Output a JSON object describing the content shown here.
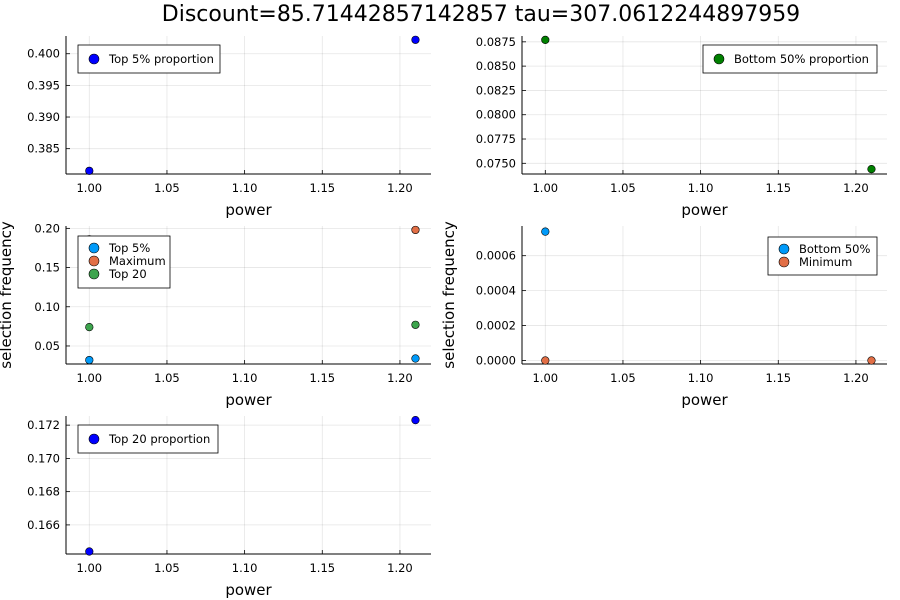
{
  "title": "Discount=85.71442857142857 tau=307.0612244897959",
  "chart_data": [
    {
      "type": "scatter",
      "xlabel": "power",
      "ylabel": "",
      "xlim": [
        0.985,
        1.22
      ],
      "ylim": [
        0.381,
        0.4028
      ],
      "xticks": [
        "1.00",
        "1.05",
        "1.10",
        "1.15",
        "1.20"
      ],
      "yticks": [
        "0.385",
        "0.390",
        "0.395",
        "0.400"
      ],
      "grid": true,
      "legend_position": "top-left",
      "series": [
        {
          "name": "Top 5% proportion",
          "color": "#0000ff",
          "x": [
            1.0,
            1.21
          ],
          "y": [
            0.3815,
            0.4022
          ]
        }
      ]
    },
    {
      "type": "scatter",
      "xlabel": "power",
      "ylabel": "",
      "xlim": [
        0.985,
        1.22
      ],
      "ylim": [
        0.0739,
        0.0881
      ],
      "xticks": [
        "1.00",
        "1.05",
        "1.10",
        "1.15",
        "1.20"
      ],
      "yticks": [
        "0.0750",
        "0.0775",
        "0.0800",
        "0.0825",
        "0.0850",
        "0.0875"
      ],
      "grid": true,
      "legend_position": "top-right",
      "series": [
        {
          "name": "Bottom 50% proportion",
          "color": "#008000",
          "x": [
            1.0,
            1.21
          ],
          "y": [
            0.0877,
            0.0744
          ]
        }
      ]
    },
    {
      "type": "scatter",
      "xlabel": "power",
      "ylabel": "selection frequency",
      "xlim": [
        0.985,
        1.22
      ],
      "ylim": [
        0.027,
        0.203
      ],
      "xticks": [
        "1.00",
        "1.05",
        "1.10",
        "1.15",
        "1.20"
      ],
      "yticks": [
        "0.05",
        "0.10",
        "0.15",
        "0.20"
      ],
      "grid": true,
      "legend_position": "top-left",
      "series": [
        {
          "name": "Top 5%",
          "color": "#009af9",
          "x": [
            1.0,
            1.21
          ],
          "y": [
            0.032,
            0.034
          ]
        },
        {
          "name": "Maximum",
          "color": "#e26f46",
          "x": [
            1.0,
            1.21
          ],
          "y": [
            0.186,
            0.198
          ]
        },
        {
          "name": "Top 20",
          "color": "#3da44d",
          "x": [
            1.0,
            1.21
          ],
          "y": [
            0.074,
            0.077
          ]
        }
      ]
    },
    {
      "type": "scatter",
      "xlabel": "power",
      "ylabel": "selection frequency",
      "xlim": [
        0.985,
        1.22
      ],
      "ylim": [
        -2e-05,
        0.00077
      ],
      "xticks": [
        "1.00",
        "1.05",
        "1.10",
        "1.15",
        "1.20"
      ],
      "yticks": [
        "0.0000",
        "0.0002",
        "0.0004",
        "0.0006"
      ],
      "grid": true,
      "legend_position": "top-right",
      "series": [
        {
          "name": "Bottom 50%",
          "color": "#009af9",
          "x": [
            1.0,
            1.21
          ],
          "y": [
            0.000738,
            0.000627
          ]
        },
        {
          "name": "Minimum",
          "color": "#e26f46",
          "x": [
            1.0,
            1.21
          ],
          "y": [
            0.0,
            0.0
          ]
        }
      ]
    },
    {
      "type": "scatter",
      "xlabel": "power",
      "ylabel": "",
      "xlim": [
        0.985,
        1.22
      ],
      "ylim": [
        0.16425,
        0.17255
      ],
      "xticks": [
        "1.00",
        "1.05",
        "1.10",
        "1.15",
        "1.20"
      ],
      "yticks": [
        "0.166",
        "0.168",
        "0.170",
        "0.172"
      ],
      "grid": true,
      "legend_position": "top-left",
      "series": [
        {
          "name": "Top 20 proportion",
          "color": "#0000ff",
          "x": [
            1.0,
            1.21
          ],
          "y": [
            0.1644,
            0.1723
          ]
        }
      ]
    }
  ]
}
